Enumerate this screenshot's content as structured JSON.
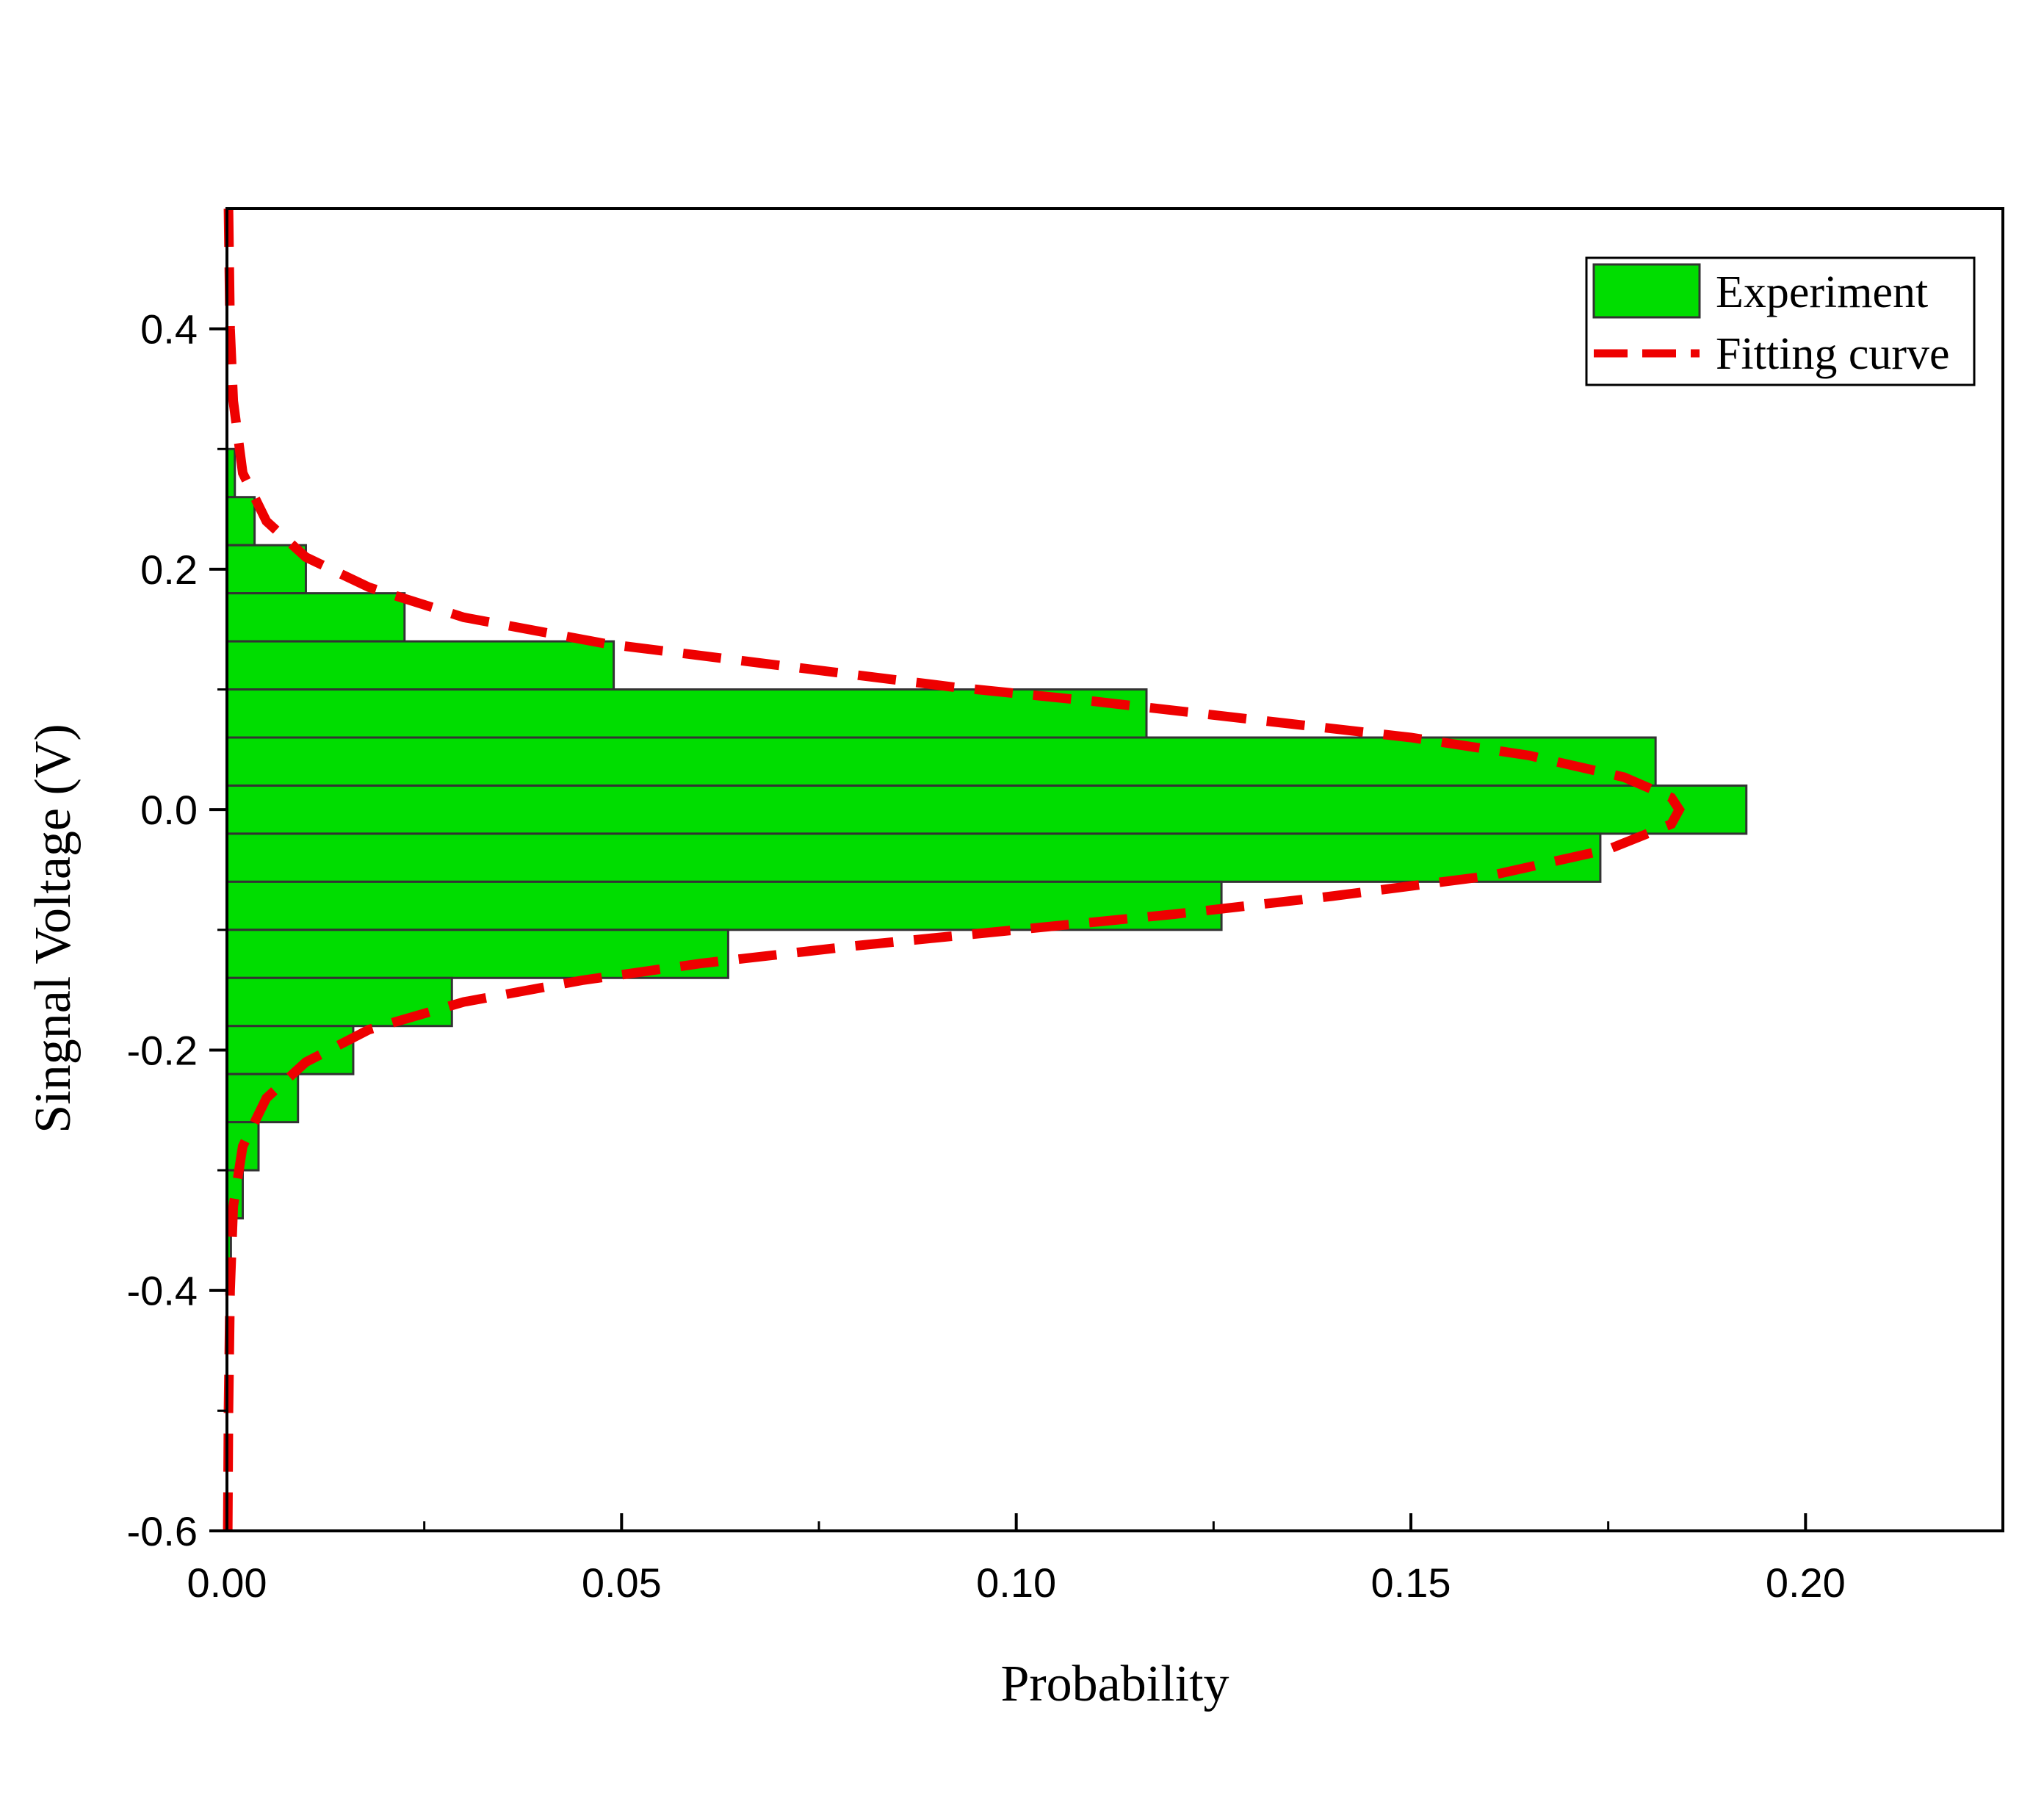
{
  "chart_data": {
    "type": "bar",
    "orientation": "horizontal",
    "xlabel": "Probability",
    "ylabel": "Singnal Voltage (V)",
    "xlim": [
      0,
      0.225
    ],
    "ylim": [
      -0.6,
      0.5
    ],
    "x_ticks": [
      "0.00",
      "0.05",
      "0.10",
      "0.15",
      "0.20"
    ],
    "x_tick_values": [
      0,
      0.05,
      0.1,
      0.15,
      0.2
    ],
    "y_ticks": [
      "-0.6",
      "-0.4",
      "-0.2",
      "0.0",
      "0.2",
      "0.4"
    ],
    "y_tick_values": [
      -0.6,
      -0.4,
      -0.2,
      0.0,
      0.2,
      0.4
    ],
    "bin_width": 0.04,
    "bin_centers": [
      0.28,
      0.24,
      0.2,
      0.16,
      0.12,
      0.08,
      0.04,
      0.0,
      -0.04,
      -0.08,
      -0.12,
      -0.16,
      -0.2,
      -0.24,
      -0.28,
      -0.32,
      -0.36
    ],
    "series": [
      {
        "name": "Experiment",
        "values": [
          0.001,
          0.0035,
          0.01,
          0.0225,
          0.049,
          0.1165,
          0.181,
          0.1925,
          0.174,
          0.126,
          0.0635,
          0.0285,
          0.016,
          0.009,
          0.004,
          0.002,
          0.0005
        ],
        "color": "#00dd00"
      },
      {
        "name": "Fitting curve",
        "points": [
          [
            0.0002,
            0.5
          ],
          [
            0.0004,
            0.4
          ],
          [
            0.0008,
            0.34
          ],
          [
            0.002,
            0.28
          ],
          [
            0.005,
            0.24
          ],
          [
            0.01,
            0.21
          ],
          [
            0.018,
            0.185
          ],
          [
            0.03,
            0.16
          ],
          [
            0.048,
            0.138
          ],
          [
            0.07,
            0.12
          ],
          [
            0.092,
            0.102
          ],
          [
            0.11,
            0.09
          ],
          [
            0.13,
            0.075
          ],
          [
            0.15,
            0.06
          ],
          [
            0.165,
            0.045
          ],
          [
            0.177,
            0.027
          ],
          [
            0.183,
            0.01
          ],
          [
            0.184,
            0.0
          ],
          [
            0.183,
            -0.012
          ],
          [
            0.175,
            -0.033
          ],
          [
            0.16,
            -0.055
          ],
          [
            0.14,
            -0.072
          ],
          [
            0.12,
            -0.087
          ],
          [
            0.1,
            -0.1
          ],
          [
            0.08,
            -0.113
          ],
          [
            0.06,
            -0.128
          ],
          [
            0.045,
            -0.142
          ],
          [
            0.03,
            -0.16
          ],
          [
            0.018,
            -0.183
          ],
          [
            0.01,
            -0.21
          ],
          [
            0.005,
            -0.24
          ],
          [
            0.002,
            -0.28
          ],
          [
            0.0008,
            -0.33
          ],
          [
            0.0004,
            -0.4
          ],
          [
            0.0002,
            -0.5
          ],
          [
            0.0001,
            -0.6
          ]
        ],
        "color": "#ee0000",
        "style": "dashed"
      }
    ],
    "legend": "top-right",
    "grid": false
  }
}
